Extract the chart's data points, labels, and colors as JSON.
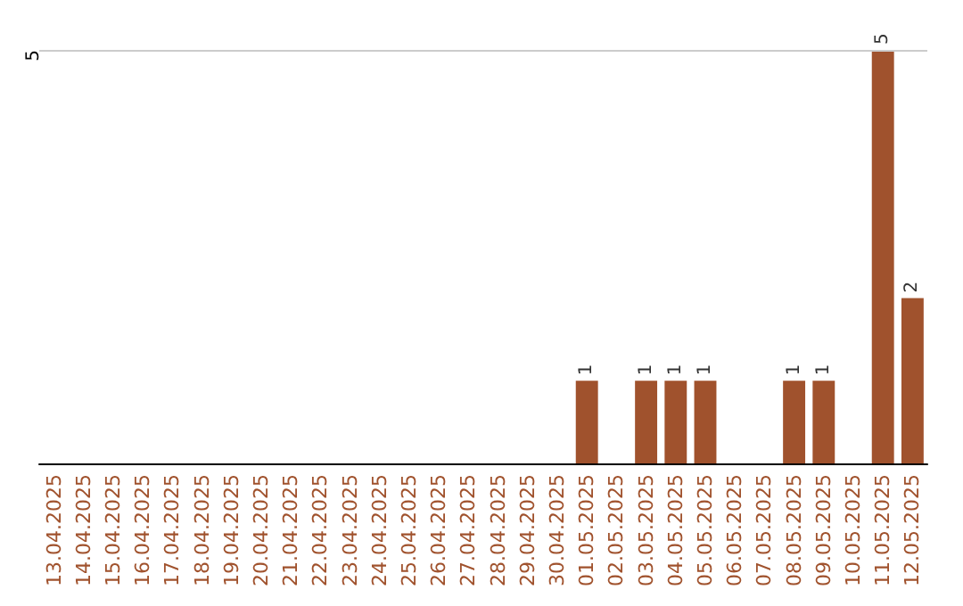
{
  "chart_data": {
    "type": "bar",
    "categories": [
      "13.04.2025",
      "14.04.2025",
      "15.04.2025",
      "16.04.2025",
      "17.04.2025",
      "18.04.2025",
      "19.04.2025",
      "20.04.2025",
      "21.04.2025",
      "22.04.2025",
      "23.04.2025",
      "24.04.2025",
      "25.04.2025",
      "26.04.2025",
      "27.04.2025",
      "28.04.2025",
      "29.04.2025",
      "30.04.2025",
      "01.05.2025",
      "02.05.2025",
      "03.05.2025",
      "04.05.2025",
      "05.05.2025",
      "06.05.2025",
      "07.05.2025",
      "08.05.2025",
      "09.05.2025",
      "10.05.2025",
      "11.05.2025",
      "12.05.2025"
    ],
    "values": [
      null,
      null,
      null,
      null,
      null,
      null,
      null,
      null,
      null,
      null,
      null,
      null,
      null,
      null,
      null,
      null,
      null,
      null,
      1,
      null,
      1,
      1,
      1,
      null,
      null,
      1,
      1,
      null,
      5,
      2
    ],
    "data_labels": true,
    "color": "#a0522d",
    "ylim": [
      0,
      5
    ],
    "ref_lines": [
      {
        "axis": "y",
        "value": 5,
        "label": "5",
        "color": "#cccccc"
      }
    ]
  }
}
